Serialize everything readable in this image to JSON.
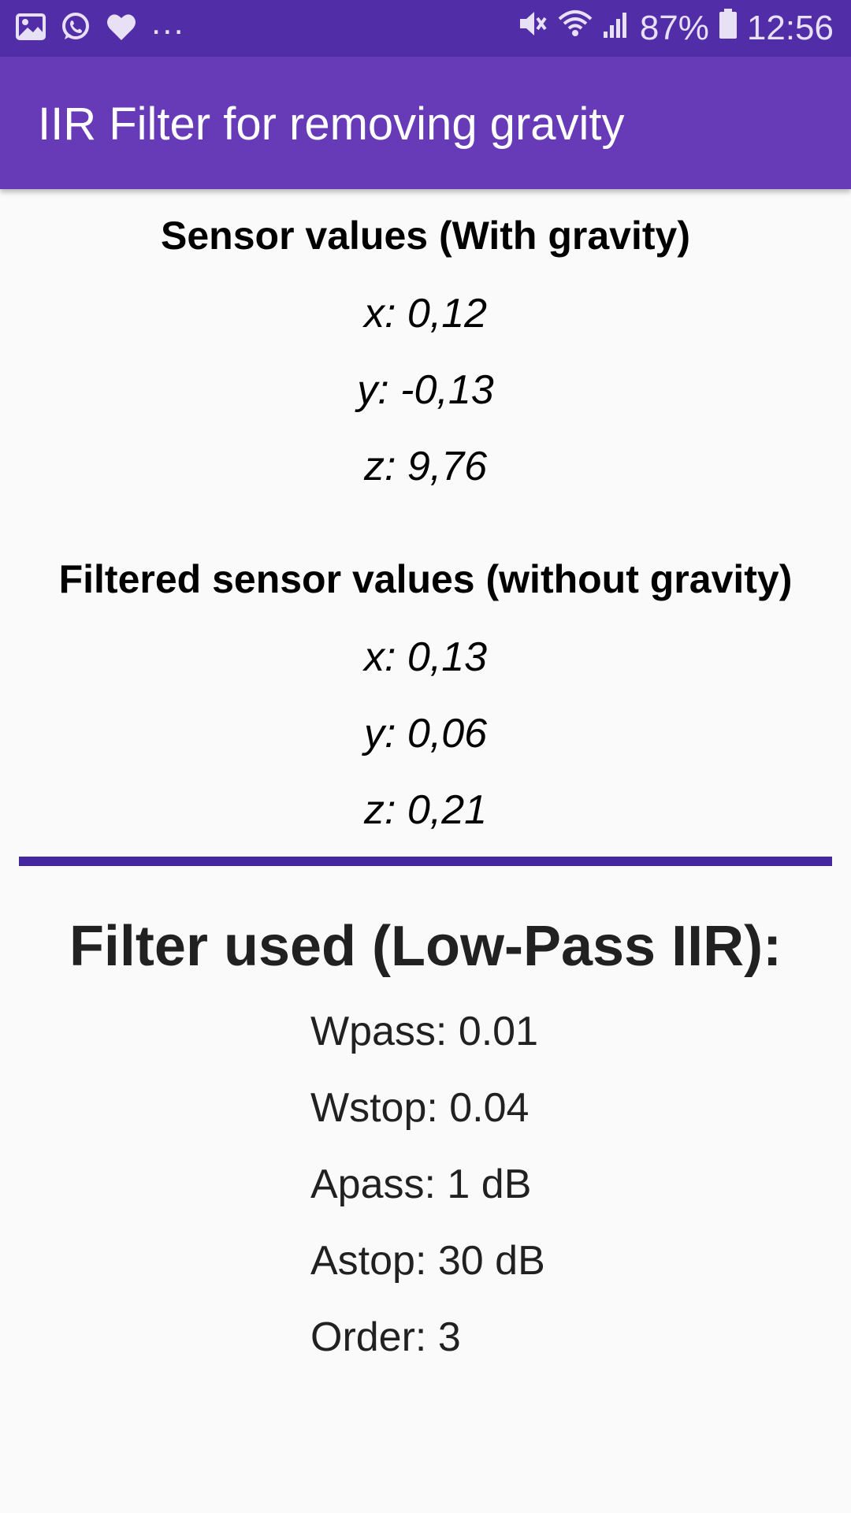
{
  "status_bar": {
    "battery": "87%",
    "time": "12:56",
    "more_dots": "...",
    "icons_left": [
      "image-icon",
      "whatsapp-icon",
      "heart-icon"
    ],
    "icons_right": [
      "mute-icon",
      "wifi-icon",
      "signal-icon",
      "battery-icon"
    ]
  },
  "app_bar": {
    "title": "IIR Filter for removing gravity",
    "background": "#673ab7",
    "status_background": "#512da8"
  },
  "raw_section": {
    "heading": "Sensor values (With gravity)",
    "x": "x: 0,12",
    "y": "y: -0,13",
    "z": "z: 9,76"
  },
  "filtered_section": {
    "heading": "Filtered sensor values (without gravity)",
    "x": "x: 0,13",
    "y": "y: 0,06",
    "z": "z: 0,21"
  },
  "filter_info": {
    "title": "Filter used (Low-Pass IIR):",
    "wpass": "Wpass: 0.01",
    "wstop": "Wstop: 0.04",
    "apass": "Apass: 1 dB",
    "astop": "Astop: 30 dB",
    "order": "Order: 3"
  }
}
